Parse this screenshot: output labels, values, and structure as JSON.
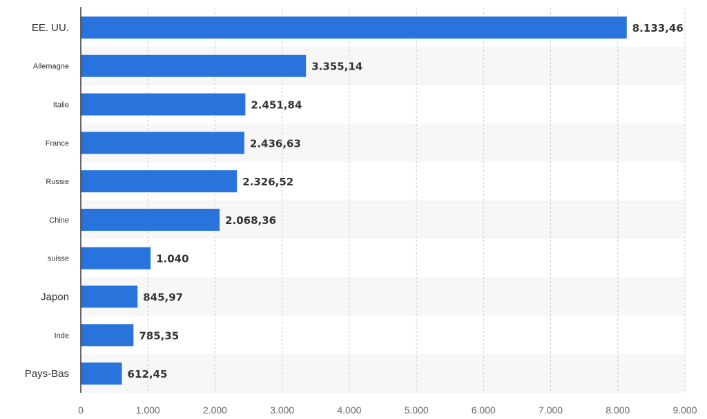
{
  "chart_data": {
    "type": "bar",
    "orientation": "horizontal",
    "title": "",
    "xlabel": "",
    "ylabel": "",
    "xlim": [
      0,
      9000
    ],
    "grid": true,
    "categories": [
      "EE. UU.",
      "Allemagne",
      "Italie",
      "France",
      "Russie",
      "Chine",
      "suisse",
      "Japon",
      "Inde",
      "Pays-Bas"
    ],
    "values": [
      8133.46,
      3355.14,
      2451.84,
      2436.63,
      2326.52,
      2068.36,
      1040,
      845.97,
      785.35,
      612.45
    ],
    "value_labels": [
      "8.133,46",
      "3.355,14",
      "2.451,84",
      "2.436,63",
      "2.326,52",
      "2.068,36",
      "1.040",
      "845,97",
      "785,35",
      "612,45"
    ],
    "x_ticks": [
      0,
      1000,
      2000,
      3000,
      4000,
      5000,
      6000,
      7000,
      8000,
      9000
    ],
    "x_tick_labels": [
      "0",
      "1.000",
      "2.000",
      "3.000",
      "4.000",
      "5.000",
      "6.000",
      "7.000",
      "8.000",
      "9.000"
    ],
    "colors": {
      "bar": "#2874dc",
      "grid": "#c8c8c8",
      "axis": "#333333",
      "band": "#f7f7f7"
    }
  }
}
